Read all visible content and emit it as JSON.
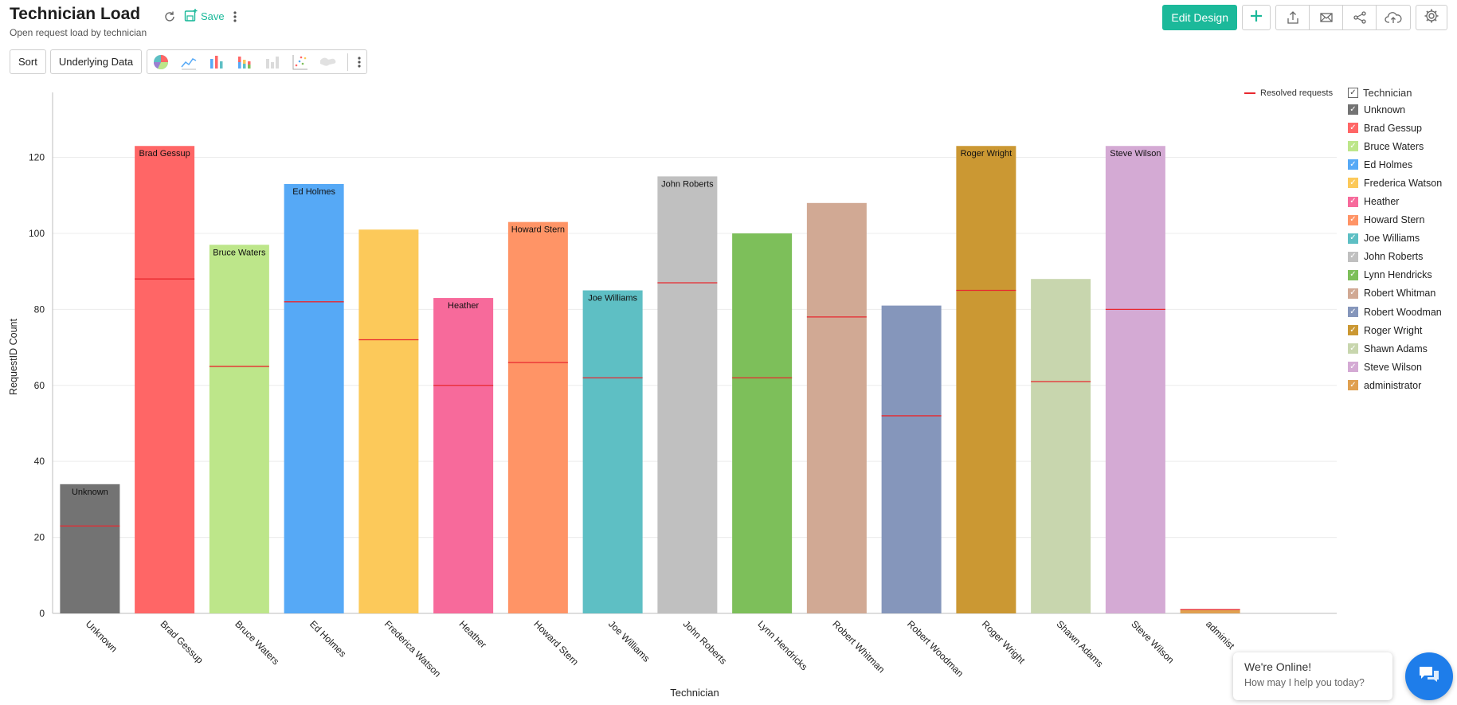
{
  "header": {
    "title": "Technician Load",
    "subtitle": "Open request load by technician",
    "save_label": "Save"
  },
  "toolbar": {
    "sort_label": "Sort",
    "underlying_label": "Underlying Data"
  },
  "actions": {
    "edit_design_label": "Edit Design",
    "add_symbol": "+"
  },
  "chat": {
    "title": "We're Online!",
    "subtitle": "How may I help you today?"
  },
  "colors": {
    "accent": "#1bb99a",
    "resolved_line": "#e8282f",
    "chat": "#1e7dea"
  },
  "icons": [
    "refresh-icon",
    "save-icon",
    "more-vertical-icon",
    "pie-chart-icon",
    "line-chart-icon",
    "bar-chart-icon",
    "stacked-bar-icon",
    "bar-grey-icon",
    "scatter-icon",
    "map-icon",
    "plus-icon",
    "export-icon",
    "email-icon",
    "share-icon",
    "cloud-upload-icon",
    "gear-icon",
    "chat-icon"
  ],
  "legend": {
    "header": "Technician",
    "resolved_label": "Resolved requests"
  },
  "chart_data": {
    "type": "bar",
    "xlabel": "Technician",
    "ylabel": "RequestID Count",
    "ylim": [
      0,
      135
    ],
    "yticks": [
      0,
      20,
      40,
      60,
      80,
      100,
      120
    ],
    "categories": [
      "Unknown",
      "Brad Gessup",
      "Bruce Waters",
      "Ed Holmes",
      "Frederica Watson",
      "Heather",
      "Howard Stern",
      "Joe Williams",
      "John Roberts",
      "Lynn Hendricks",
      "Robert Whitman",
      "Robert Woodman",
      "Roger Wright",
      "Shawn Adams",
      "Steve Wilson",
      "administrator"
    ],
    "x_tick_labels": [
      "Unknown",
      "Brad Gessup",
      "Bruce Waters",
      "Ed Holmes",
      "Frederica Watson",
      "Heather",
      "Howard Stern",
      "Joe Williams",
      "John Roberts",
      "Lynn Hendricks",
      "Robert Whitman",
      "Robert Woodman",
      "Roger Wright",
      "Shawn Adams",
      "Steve Wilson",
      "administ"
    ],
    "colors": [
      "#737373",
      "#ff6666",
      "#bde68a",
      "#56a9f6",
      "#fcc95a",
      "#f76a9b",
      "#ff9466",
      "#5ebfc4",
      "#c0c0c0",
      "#7dbf5a",
      "#d1a994",
      "#8596bb",
      "#cb9833",
      "#c8d6ae",
      "#d4aad4",
      "#e0a050"
    ],
    "series": [
      {
        "name": "RequestID Count",
        "values": [
          34,
          123,
          97,
          113,
          101,
          83,
          103,
          85,
          115,
          100,
          108,
          81,
          123,
          88,
          123,
          1
        ]
      },
      {
        "name": "Resolved requests",
        "values": [
          23,
          88,
          65,
          82,
          72,
          60,
          66,
          62,
          87,
          62,
          78,
          52,
          85,
          61,
          80,
          1
        ]
      }
    ],
    "data_labels": [
      "Unknown",
      "Brad Gessup",
      "Bruce Waters",
      "Ed Holmes",
      "",
      "Heather",
      "Howard Stern",
      "Joe Williams",
      "John Roberts",
      "",
      "",
      "",
      "Roger Wright",
      "",
      "Steve Wilson",
      ""
    ],
    "grid": true,
    "legend_position": "right"
  }
}
